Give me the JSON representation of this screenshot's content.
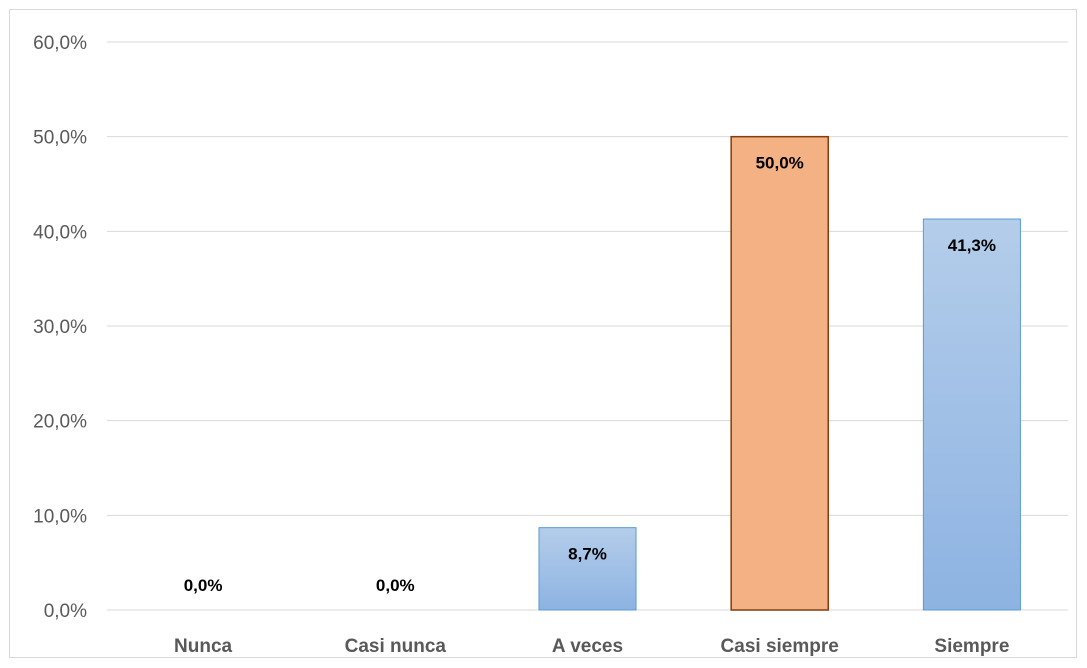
{
  "chart_data": {
    "type": "bar",
    "categories": [
      "Nunca",
      "Casi nunca",
      "A veces",
      "Casi siempre",
      "Siempre"
    ],
    "values": [
      0.0,
      0.0,
      8.7,
      50.0,
      41.3
    ],
    "data_labels": [
      "0,0%",
      "0,0%",
      "8,7%",
      "50,0%",
      "41,3%"
    ],
    "y_tick_labels": [
      "0,0%",
      "10,0%",
      "20,0%",
      "30,0%",
      "40,0%",
      "50,0%",
      "60,0%"
    ],
    "ylim": [
      0,
      60
    ],
    "title": "",
    "xlabel": "",
    "ylabel": "",
    "grid": true,
    "legend": "none",
    "highlight_index": 3,
    "colors": {
      "bar_fill_top": "#b4cdea",
      "bar_fill_bottom": "#8db3e2",
      "bar_stroke": "#5b9bd5",
      "highlight_fill": "#f4b183",
      "highlight_stroke": "#843c0c",
      "grid": "#d9d9d9",
      "axis_text": "#595959",
      "data_label_text": "#000000"
    }
  }
}
